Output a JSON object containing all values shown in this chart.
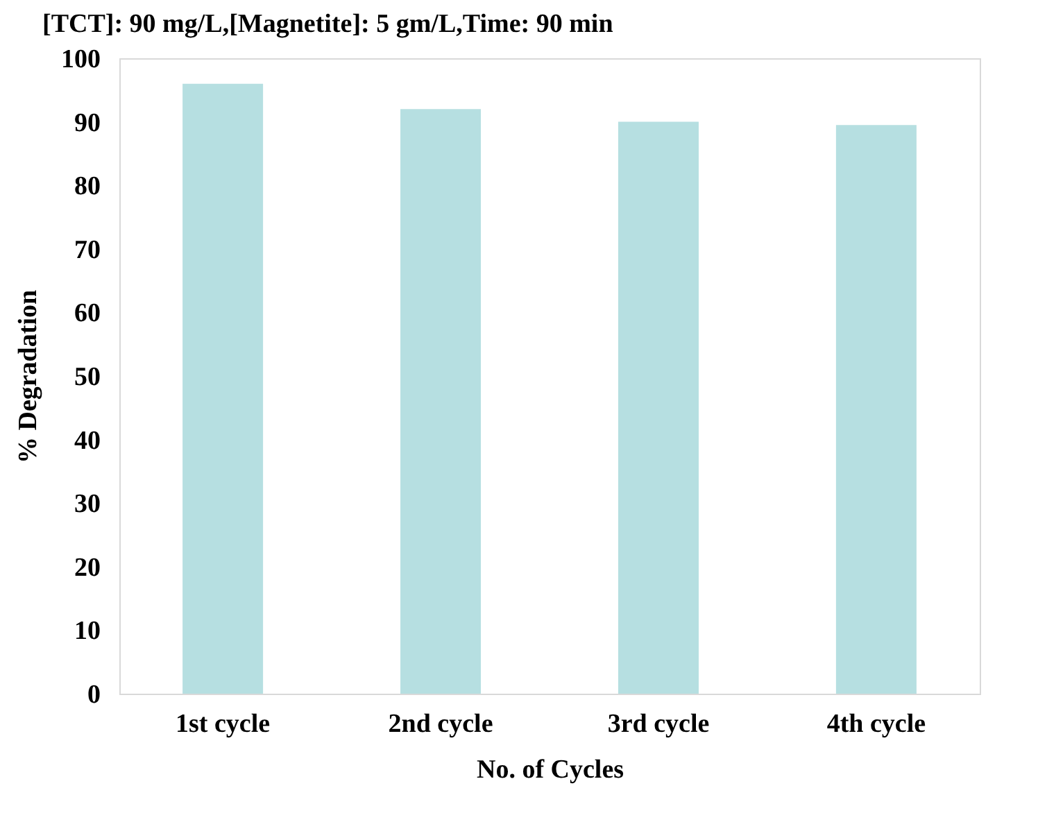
{
  "chart_data": {
    "type": "bar",
    "title": "[TCT]: 90 mg/L,[Magnetite]: 5 gm/L,Time: 90 min",
    "xlabel": "No. of Cycles",
    "ylabel": "% Degradation",
    "categories": [
      "1st cycle",
      "2nd cycle",
      "3rd cycle",
      "4th cycle"
    ],
    "values": [
      96,
      92,
      90,
      89.5
    ],
    "color": "#b6dfe1",
    "ylim": [
      0,
      100
    ],
    "yticks": [
      0,
      10,
      20,
      30,
      40,
      50,
      60,
      70,
      80,
      90,
      100
    ],
    "grid": false
  }
}
